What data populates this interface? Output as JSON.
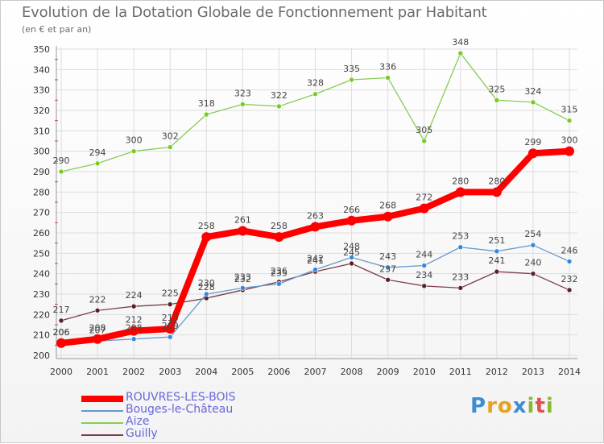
{
  "header": {
    "title": "Evolution de la Dotation Globale de Fonctionnement par Habitant",
    "subtitle": "(en € et par an)"
  },
  "colors": {
    "grid": "#dddddd",
    "axis": "#999999",
    "tick_text": "#333333",
    "value_text": "#444444",
    "legend_text": "#6666dd"
  },
  "chart_data": {
    "type": "line",
    "title": "Evolution de la Dotation Globale de Fonctionnement par Habitant",
    "subtitle": "(en € et par an)",
    "xlabel": "",
    "ylabel": "",
    "x": [
      2000,
      2001,
      2002,
      2003,
      2004,
      2005,
      2006,
      2007,
      2008,
      2009,
      2010,
      2011,
      2012,
      2013,
      2014
    ],
    "ylim": [
      200,
      350
    ],
    "yticks": [
      200,
      210,
      220,
      230,
      240,
      250,
      260,
      270,
      280,
      290,
      300,
      310,
      320,
      330,
      340,
      350
    ],
    "grid": true,
    "legend_position": "bottom-left",
    "series": [
      {
        "name": "Aize",
        "color": "#88cc55",
        "marker_color": "#77cc22",
        "values": [
          290,
          294,
          300,
          302,
          318,
          323,
          322,
          328,
          335,
          336,
          305,
          348,
          325,
          324,
          315
        ]
      },
      {
        "name": "Guilly",
        "color": "#7a3d46",
        "marker_color": "#5a1f28",
        "values": [
          217,
          222,
          224,
          225,
          228,
          232,
          236,
          241,
          245,
          237,
          234,
          233,
          241,
          240,
          232
        ]
      },
      {
        "name": "Bouges-le-Château",
        "color": "#6699cc",
        "marker_color": "#3388dd",
        "values": [
          206,
          207,
          208,
          209,
          230,
          233,
          235,
          242,
          248,
          243,
          244,
          253,
          251,
          254,
          246
        ]
      },
      {
        "name": "ROUVRES-LES-BOIS",
        "color": "#ff0000",
        "marker_color": "#ff0000",
        "values": [
          206,
          208,
          212,
          213,
          258,
          261,
          258,
          263,
          266,
          268,
          272,
          280,
          280,
          299,
          300
        ]
      }
    ]
  },
  "legend": {
    "items": [
      {
        "label": "ROUVRES-LES-BOIS",
        "color": "#ff0000"
      },
      {
        "label": "Bouges-le-Château",
        "color": "#6699cc"
      },
      {
        "label": "Aize",
        "color": "#88cc55"
      },
      {
        "label": "Guilly",
        "color": "#7a3d46"
      }
    ]
  },
  "logo": {
    "text": "Proxiti",
    "letters": [
      "P",
      "r",
      "o",
      "x",
      "i",
      "t",
      "i"
    ],
    "colors": [
      "#3b8ed6",
      "#e8a020",
      "#e8a020",
      "#3b8ed6",
      "#88bb33",
      "#e05050",
      "#88bb33"
    ]
  }
}
